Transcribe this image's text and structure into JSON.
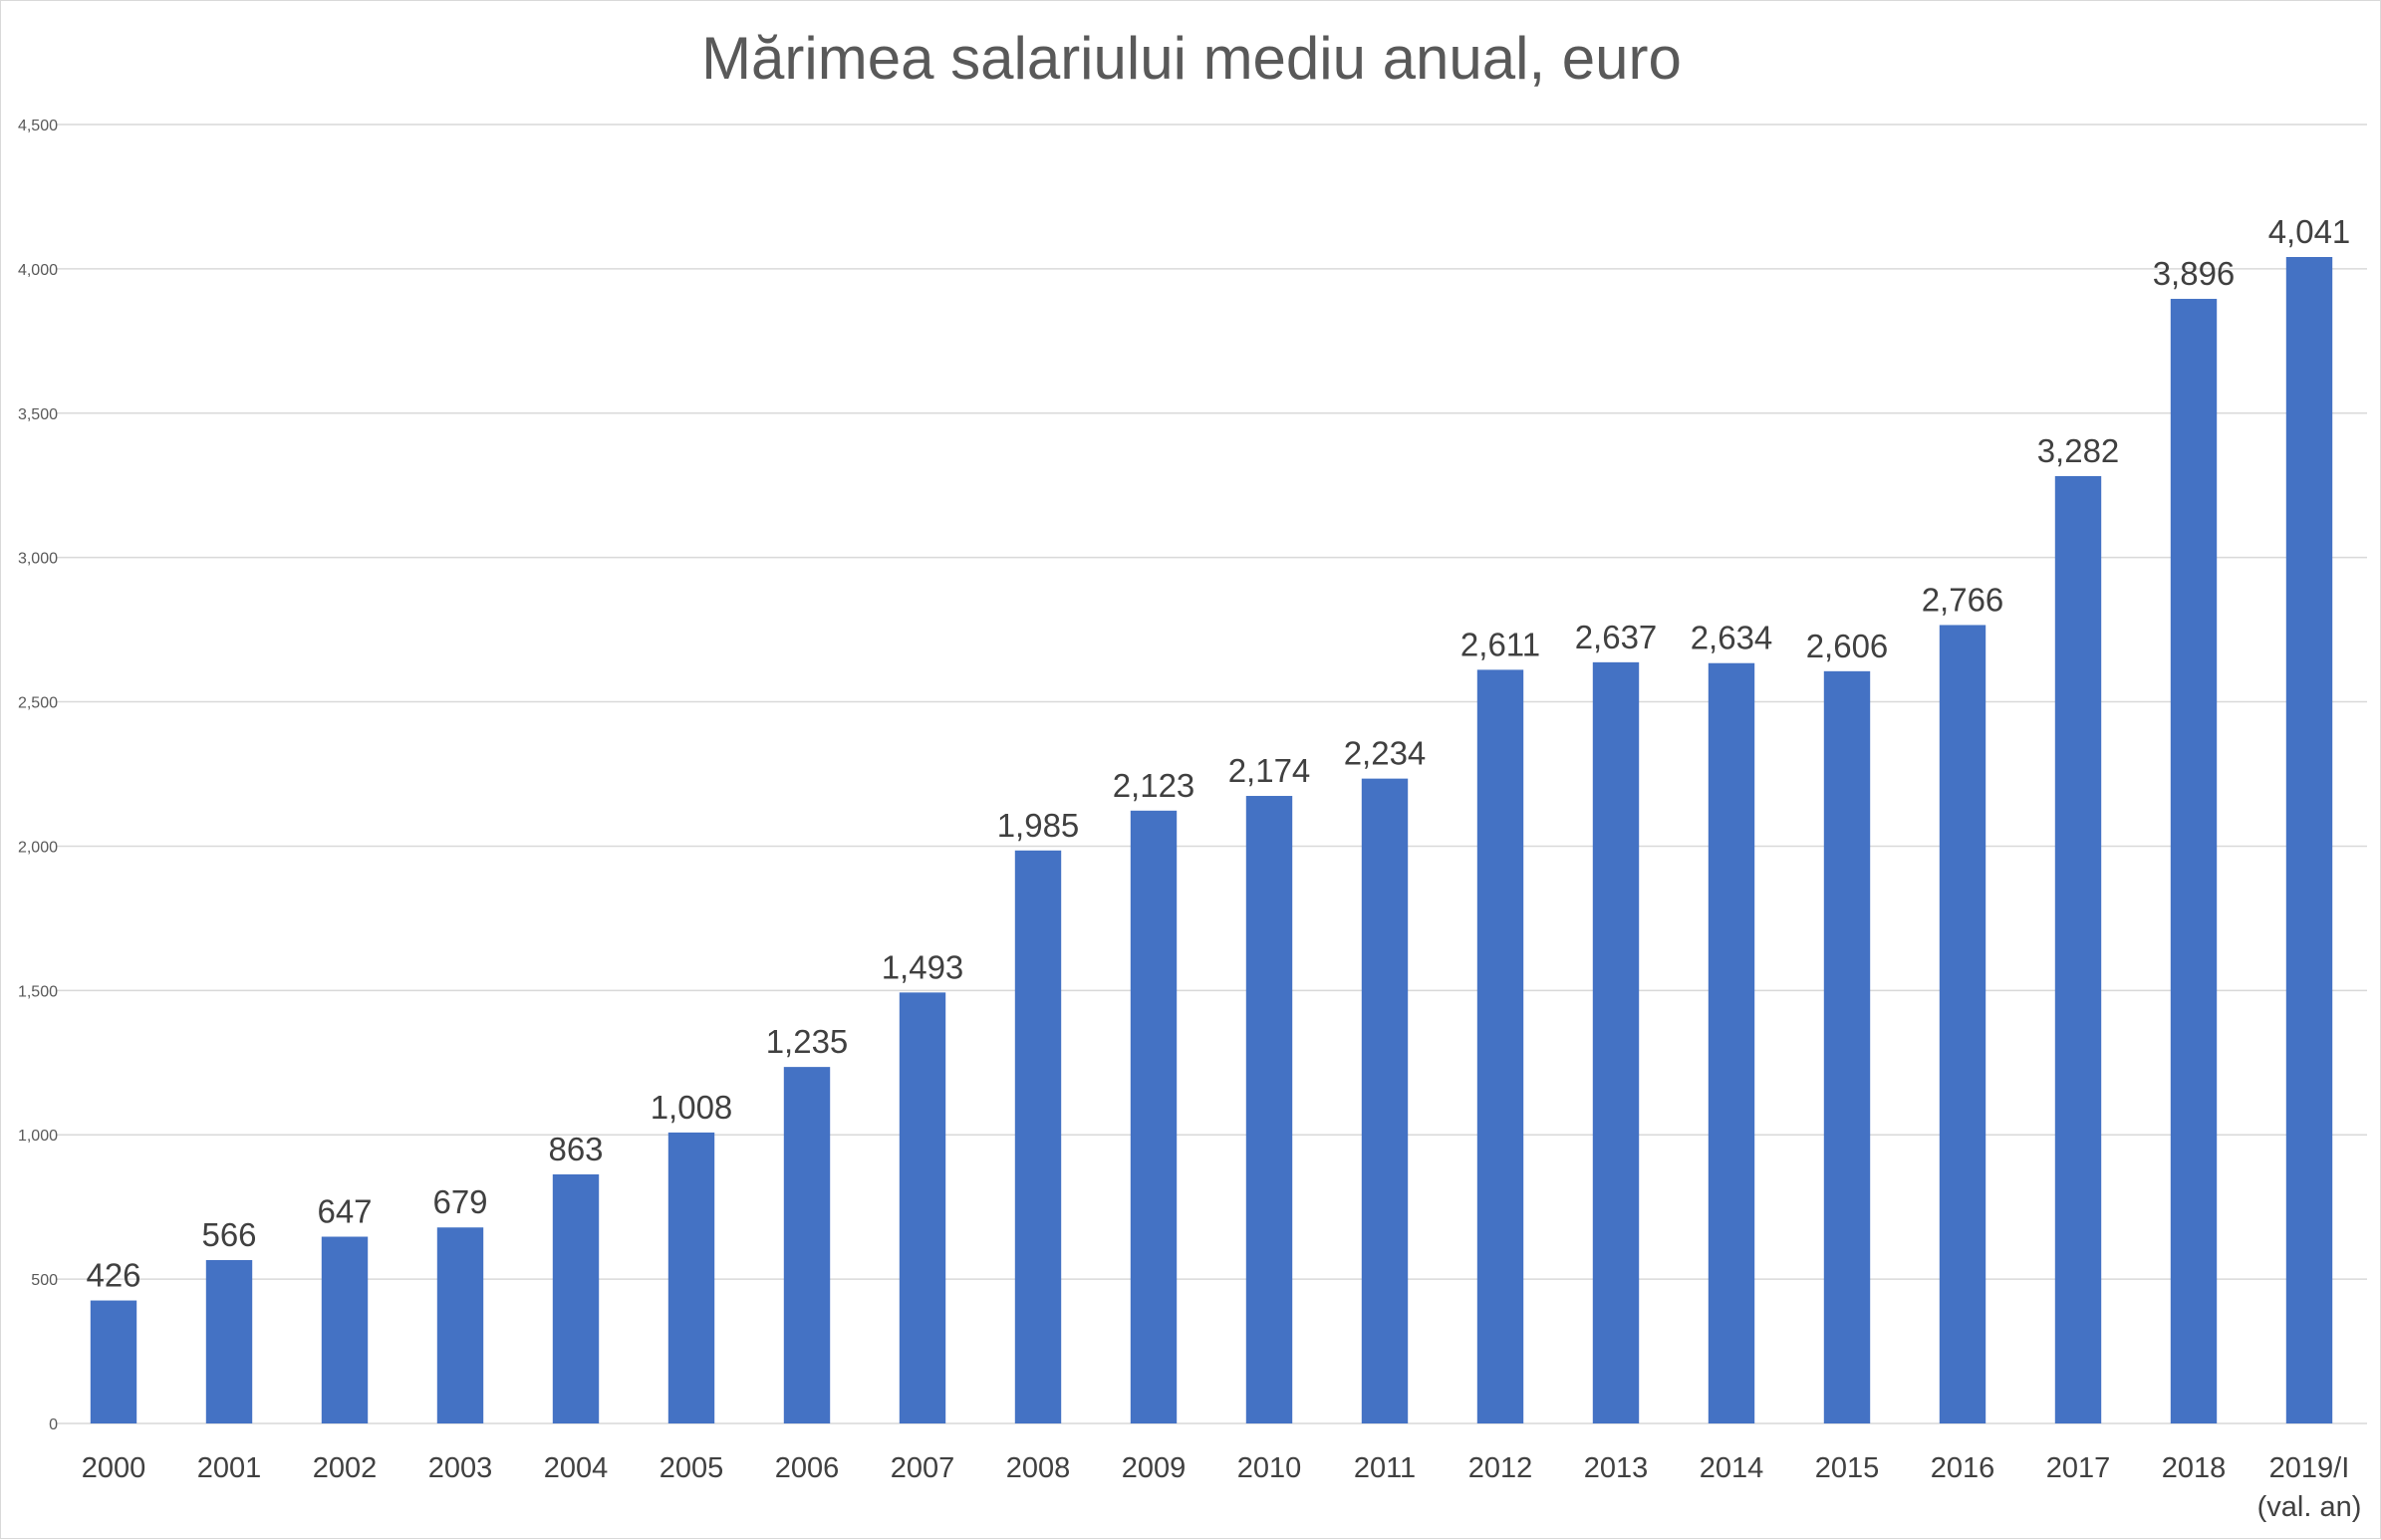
{
  "chart_data": {
    "type": "bar",
    "title": "Mărimea salariului mediu anual, euro",
    "categories": [
      [
        "2000"
      ],
      [
        "2001"
      ],
      [
        "2002"
      ],
      [
        "2003"
      ],
      [
        "2004"
      ],
      [
        "2005"
      ],
      [
        "2006"
      ],
      [
        "2007"
      ],
      [
        "2008"
      ],
      [
        "2009"
      ],
      [
        "2010"
      ],
      [
        "2011"
      ],
      [
        "2012"
      ],
      [
        "2013"
      ],
      [
        "2014"
      ],
      [
        "2015"
      ],
      [
        "2016"
      ],
      [
        "2017"
      ],
      [
        "2018"
      ],
      [
        "2019/I",
        "(val. an)"
      ]
    ],
    "values": [
      426,
      566,
      647,
      679,
      863,
      1008,
      1235,
      1493,
      1985,
      2123,
      2174,
      2234,
      2611,
      2637,
      2634,
      2606,
      2766,
      3282,
      3896,
      4041
    ],
    "data_labels": [
      "426",
      "566",
      "647",
      "679",
      "863",
      "1,008",
      "1,235",
      "1,493",
      "1,985",
      "2,123",
      "2,174",
      "2,234",
      "2,611",
      "2,637",
      "2,634",
      "2,606",
      "2,766",
      "3,282",
      "3,896",
      "4,041"
    ],
    "yticks": [
      0,
      500,
      1000,
      1500,
      2000,
      2500,
      3000,
      3500,
      4000,
      4500
    ],
    "ytick_labels": [
      "0",
      "500",
      "1,000",
      "1,500",
      "2,000",
      "2,500",
      "3,000",
      "3,500",
      "4,000",
      "4,500"
    ],
    "ylim": [
      0,
      4500
    ],
    "grid": true,
    "legend": "none",
    "bar_color": "#4472C4",
    "grid_color": "#D9D9D9"
  }
}
